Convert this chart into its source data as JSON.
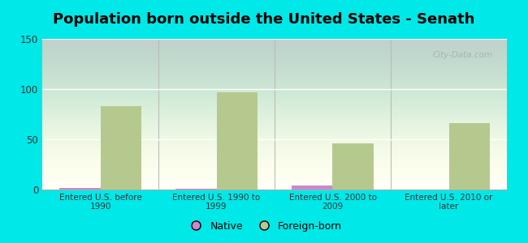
{
  "title": "Population born outside the United States - Senath",
  "categories": [
    "Entered U.S. before\n1990",
    "Entered U.S. 1990 to\n1999",
    "Entered U.S. 2000 to\n2009",
    "Entered U.S. 2010 or\nlater"
  ],
  "native_values": [
    2,
    1,
    4,
    0
  ],
  "foreign_values": [
    83,
    97,
    46,
    66
  ],
  "native_color": "#cc88cc",
  "foreign_color": "#b5c98e",
  "background_outer": "#00e8e8",
  "ylim": [
    0,
    150
  ],
  "yticks": [
    0,
    50,
    100,
    150
  ],
  "bar_width": 0.35,
  "title_fontsize": 13,
  "legend_native": "Native",
  "legend_foreign": "Foreign-born",
  "watermark": "City-Data.com",
  "grid_color": "#ddeecc",
  "separator_color": "#bbbbbb"
}
